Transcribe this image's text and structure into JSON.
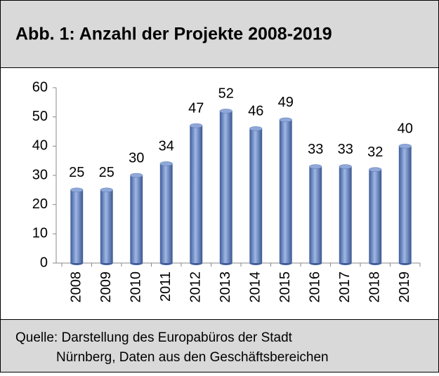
{
  "chart_data": {
    "type": "bar",
    "title": "Abb. 1: Anzahl der Projekte 2008-2019",
    "categories": [
      "2008",
      "2009",
      "2010",
      "2011",
      "2012",
      "2013",
      "2014",
      "2015",
      "2016",
      "2017",
      "2018",
      "2019"
    ],
    "values": [
      25,
      25,
      30,
      34,
      47,
      52,
      46,
      49,
      33,
      33,
      32,
      40
    ],
    "color": "#6f8fc9",
    "ylim": [
      0,
      60
    ],
    "yticks": [
      0,
      10,
      20,
      30,
      40,
      50,
      60
    ],
    "grid": false,
    "source": [
      "Quelle: Darstellung des Europabüros der Stadt",
      "Nürnberg, Daten aus den Geschäftsbereichen"
    ]
  }
}
